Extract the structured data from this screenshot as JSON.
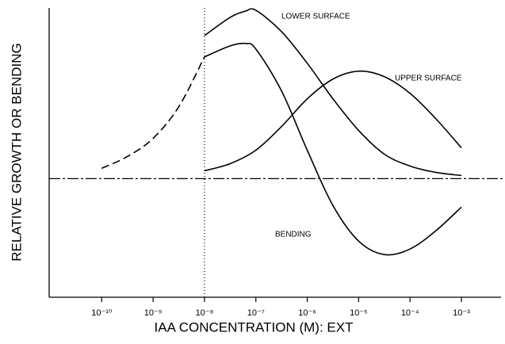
{
  "chart_data": {
    "type": "line",
    "x_label": "IAA CONCENTRATION (M): EXT",
    "y_label": "RELATIVE GROWTH OR BENDING",
    "x_log": true,
    "xlim": [
      9.5e-12,
      0.0059
    ],
    "ylim": [
      -7.5,
      10.8
    ],
    "xticks": [
      {
        "value": 1e-10,
        "label": "10⁻¹⁰"
      },
      {
        "value": 1e-09,
        "label": "10⁻⁹"
      },
      {
        "value": 1e-08,
        "label": "10⁻⁸"
      },
      {
        "value": 1e-07,
        "label": "10⁻⁷"
      },
      {
        "value": 1e-06,
        "label": "10⁻⁶"
      },
      {
        "value": 1e-05,
        "label": "10⁻⁵"
      },
      {
        "value": 0.0001,
        "label": "10⁻⁴"
      },
      {
        "value": 0.001,
        "label": "10⁻³"
      }
    ],
    "reference_y": 0,
    "reference_x": 1e-08,
    "series": [
      {
        "color": "#000",
        "dashed": true,
        "x": [
          1e-10,
          3.162e-10,
          1e-09,
          3.162e-09,
          1e-08
        ],
        "values": [
          0.65,
          1.4,
          2.55,
          4.55,
          7.7
        ]
      },
      {
        "name": "LOWER SURFACE",
        "color": "#000",
        "x": [
          1e-08,
          3.162e-08,
          6.31e-08,
          1e-07,
          3.162e-07,
          1e-06,
          3.162e-06,
          1e-05,
          3.162e-05,
          0.0001,
          0.0003162,
          0.001
        ],
        "values": [
          9.05,
          10.2,
          10.6,
          10.65,
          9.3,
          7.3,
          5.05,
          3.05,
          1.55,
          0.8,
          0.4,
          0.2
        ]
      },
      {
        "name": "UPPER SURFACE",
        "color": "#000",
        "x": [
          1e-08,
          3.162e-08,
          1e-07,
          3.162e-07,
          1e-06,
          3.162e-06,
          1e-05,
          3.162e-05,
          0.0001,
          0.0003162,
          0.001
        ],
        "values": [
          0.5,
          0.95,
          1.8,
          3.3,
          5.05,
          6.3,
          6.8,
          6.45,
          5.4,
          3.8,
          1.95
        ]
      },
      {
        "name": "BENDING",
        "color": "#000",
        "x": [
          1e-08,
          3.162e-08,
          6.31e-08,
          1e-07,
          3.162e-07,
          1e-06,
          3.162e-06,
          1e-05,
          3.162e-05,
          0.0001,
          0.0003162,
          0.001
        ],
        "values": [
          7.7,
          8.4,
          8.55,
          8.2,
          5.55,
          1.8,
          -1.7,
          -3.95,
          -4.8,
          -4.45,
          -3.3,
          -1.8
        ]
      }
    ]
  }
}
